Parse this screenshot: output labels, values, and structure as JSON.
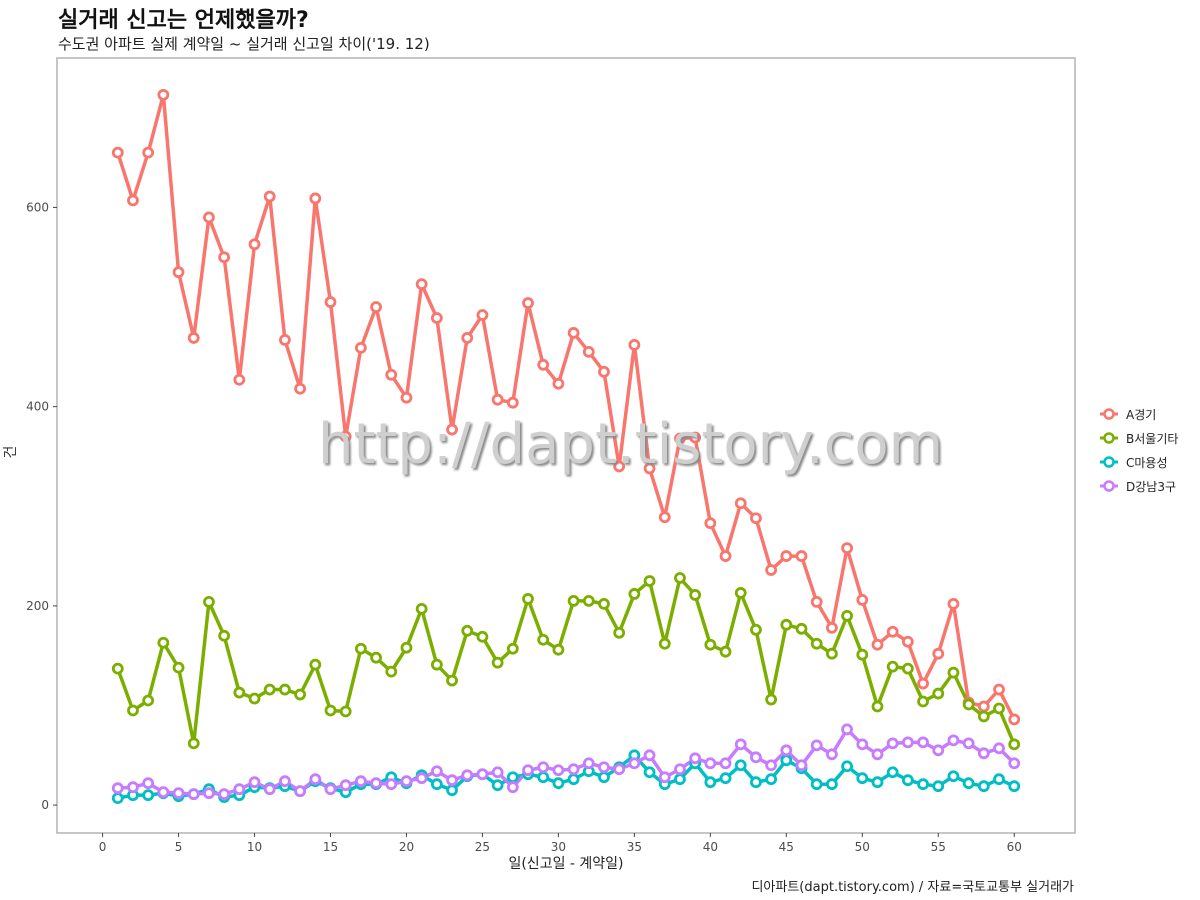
{
  "title": "실거래 신고는 언제했을까?",
  "subtitle": "수도권 아파트 실제 계약일 ~ 실거래 신고일 차이('19. 12)",
  "caption": "디아파트(dapt.tistory.com) / 자료=국토교통부 실거래가",
  "watermark": "http://dapt.tistory.com",
  "colors": {
    "A경기": "#F8766D",
    "B서울기타": "#7CAE00",
    "C마용성": "#00BFC4",
    "D강남3구": "#C77CFF"
  },
  "chart_data": {
    "type": "line",
    "xlabel": "일(신고일 - 계약일)",
    "ylabel": "건",
    "xlim": [
      -3,
      64
    ],
    "ylim": [
      -28,
      750
    ],
    "xticks": [
      0,
      5,
      10,
      15,
      20,
      25,
      30,
      35,
      40,
      45,
      50,
      55,
      60
    ],
    "yticks": [
      0,
      200,
      400,
      600
    ],
    "grid": false,
    "legend_position": "right",
    "x": [
      1,
      2,
      3,
      4,
      5,
      6,
      7,
      8,
      9,
      10,
      11,
      12,
      13,
      14,
      15,
      16,
      17,
      18,
      19,
      20,
      21,
      22,
      23,
      24,
      25,
      26,
      27,
      28,
      29,
      30,
      31,
      32,
      33,
      34,
      35,
      36,
      37,
      38,
      39,
      40,
      41,
      42,
      43,
      44,
      45,
      46,
      47,
      48,
      49,
      50,
      51,
      52,
      53,
      54,
      55,
      56,
      57,
      58,
      59,
      60
    ],
    "series": [
      {
        "name": "A경기",
        "values": [
          655,
          607,
          655,
          713,
          535,
          469,
          590,
          550,
          427,
          563,
          611,
          467,
          418,
          609,
          505,
          370,
          459,
          500,
          432,
          409,
          523,
          489,
          377,
          469,
          492,
          407,
          404,
          504,
          442,
          423,
          474,
          455,
          435,
          340,
          462,
          338,
          289,
          368,
          369,
          283,
          250,
          303,
          288,
          236,
          250,
          250,
          204,
          178,
          258,
          206,
          161,
          174,
          164,
          122,
          152,
          202,
          103,
          99,
          116,
          86
        ]
      },
      {
        "name": "B서울기타",
        "values": [
          137,
          95,
          105,
          163,
          138,
          62,
          204,
          170,
          113,
          107,
          116,
          116,
          111,
          141,
          95,
          94,
          157,
          148,
          134,
          158,
          197,
          141,
          125,
          175,
          169,
          143,
          157,
          207,
          166,
          156,
          205,
          205,
          202,
          173,
          212,
          225,
          162,
          228,
          211,
          161,
          154,
          213,
          176,
          106,
          181,
          177,
          162,
          152,
          190,
          151,
          99,
          139,
          137,
          104,
          112,
          133,
          101,
          89,
          97,
          61
        ]
      },
      {
        "name": "C마용성",
        "values": [
          7,
          10,
          10,
          12,
          9,
          11,
          16,
          8,
          10,
          18,
          17,
          19,
          14,
          24,
          17,
          13,
          21,
          21,
          28,
          22,
          30,
          21,
          15,
          29,
          31,
          20,
          28,
          31,
          28,
          22,
          26,
          34,
          28,
          38,
          50,
          33,
          21,
          26,
          42,
          23,
          27,
          40,
          23,
          26,
          45,
          37,
          21,
          21,
          39,
          27,
          23,
          33,
          25,
          21,
          19,
          29,
          22,
          19,
          26,
          19
        ]
      },
      {
        "name": "D강남3구",
        "values": [
          17,
          18,
          22,
          13,
          12,
          11,
          12,
          11,
          16,
          23,
          16,
          24,
          14,
          26,
          16,
          20,
          24,
          22,
          21,
          24,
          27,
          34,
          25,
          30,
          31,
          33,
          18,
          35,
          38,
          35,
          36,
          42,
          38,
          36,
          42,
          50,
          28,
          36,
          47,
          42,
          42,
          61,
          48,
          40,
          55,
          40,
          60,
          51,
          76,
          61,
          51,
          62,
          63,
          63,
          55,
          65,
          62,
          52,
          57,
          42
        ]
      }
    ]
  }
}
